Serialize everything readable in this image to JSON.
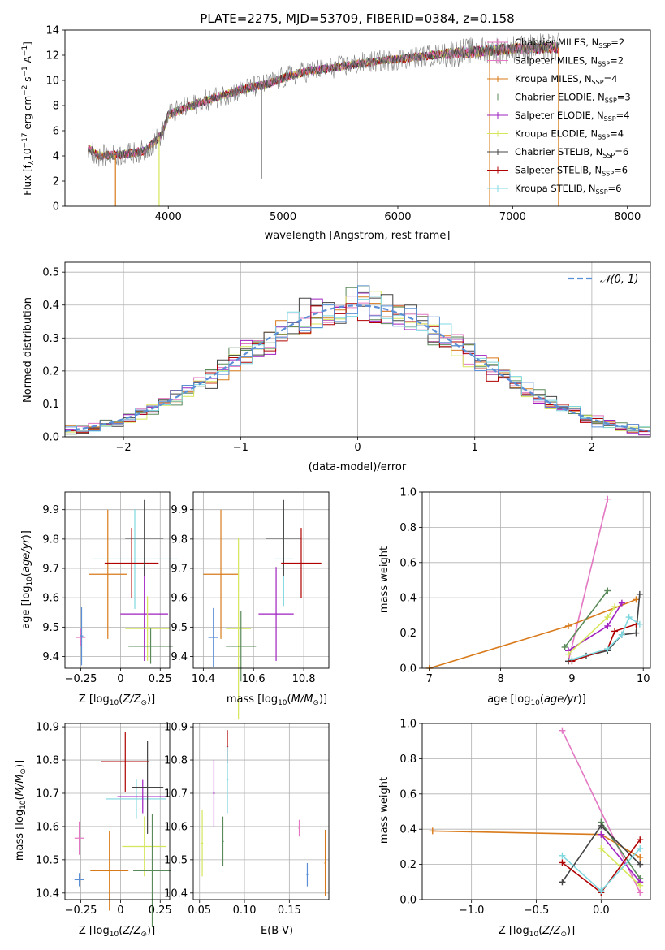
{
  "colors": {
    "chabrier_miles": "#e377c2",
    "salpeter_miles": "#e377c2",
    "kroupa_miles": "#d97a1a",
    "chabrier_elodie": "#5a8a5a",
    "salpeter_elodie": "#a020c0",
    "kroupa_elodie": "#d6e65a",
    "chabrier_stelib": "#444444",
    "salpeter_stelib": "#b00000",
    "kroupa_stelib": "#7fd8e0",
    "data": "#808080",
    "normal": "#5b8fd6",
    "grid": "#b0b0b0"
  },
  "chart_data": [
    {
      "id": "spectrum",
      "type": "line",
      "title": "PLATE=2275, MJD=53709, FIBERID=0384, z=0.158",
      "xlabel": "wavelength [Angstrom, rest frame]",
      "ylabel": "Flux [fλ10⁻¹⁷ erg cm⁻² s⁻¹ A⁻¹]",
      "xlim": [
        3100,
        8200
      ],
      "ylim": [
        0,
        14
      ],
      "xticks": [
        4000,
        5000,
        6000,
        7000,
        8000
      ],
      "yticks": [
        0,
        2,
        4,
        6,
        8,
        10,
        12,
        14
      ],
      "grid": false,
      "legend_position": "top-right",
      "legend": [
        {
          "label": "Chabrier MILES, N",
          "sub": "SSP",
          "tail": "=2",
          "color_key": "chabrier_miles"
        },
        {
          "label": "Salpeter MILES, N",
          "sub": "SSP",
          "tail": "=2",
          "color_key": "salpeter_miles"
        },
        {
          "label": "Kroupa MILES, N",
          "sub": "SSP",
          "tail": "=4",
          "color_key": "kroupa_miles"
        },
        {
          "label": "Chabrier ELODIE, N",
          "sub": "SSP",
          "tail": "=3",
          "color_key": "chabrier_elodie"
        },
        {
          "label": "Salpeter ELODIE, N",
          "sub": "SSP",
          "tail": "=4",
          "color_key": "salpeter_elodie"
        },
        {
          "label": "Kroupa ELODIE, N",
          "sub": "SSP",
          "tail": "=4",
          "color_key": "kroupa_elodie"
        },
        {
          "label": "Chabrier STELIB, N",
          "sub": "SSP",
          "tail": "=6",
          "color_key": "chabrier_stelib"
        },
        {
          "label": "Salpeter STELIB, N",
          "sub": "SSP",
          "tail": "=6",
          "color_key": "salpeter_stelib"
        },
        {
          "label": "Kroupa STELIB, N",
          "sub": "SSP",
          "tail": "=6",
          "color_key": "kroupa_stelib"
        }
      ],
      "continuum": [
        [
          3300,
          4.6
        ],
        [
          3400,
          4.0
        ],
        [
          3600,
          4.1
        ],
        [
          3800,
          4.4
        ],
        [
          3950,
          5.8
        ],
        [
          4000,
          7.3
        ],
        [
          4300,
          8.3
        ],
        [
          4500,
          8.9
        ],
        [
          4700,
          9.4
        ],
        [
          4860,
          9.7
        ],
        [
          5000,
          10.2
        ],
        [
          5200,
          10.7
        ],
        [
          5500,
          11.1
        ],
        [
          5800,
          11.5
        ],
        [
          6100,
          11.8
        ],
        [
          6400,
          12.1
        ],
        [
          6700,
          12.3
        ],
        [
          7000,
          12.5
        ],
        [
          7300,
          12.6
        ]
      ]
    },
    {
      "id": "residuals",
      "type": "histogram",
      "xlabel": "(data-model)/error",
      "ylabel": "Normed distribution",
      "xlim": [
        -2.5,
        2.5
      ],
      "ylim": [
        0,
        0.53
      ],
      "xticks": [
        -2,
        -1,
        0,
        1,
        2
      ],
      "yticks": [
        0.0,
        0.1,
        0.2,
        0.3,
        0.4,
        0.5
      ],
      "grid": true,
      "legend_position": "top-right",
      "legend": [
        {
          "label": "𝒩(0, 1)",
          "color_key": "normal",
          "style": "dashed"
        }
      ],
      "bin_width": 0.1
    },
    {
      "id": "age_vs_Z",
      "type": "scatter",
      "xlabel": "Z [log10(Z/Z⊙)]",
      "ylabel": "age [log10(age/yr)]",
      "xlim": [
        -0.35,
        0.31
      ],
      "ylim": [
        9.36,
        9.96
      ],
      "xticks": [
        -0.25,
        0.0,
        0.25
      ],
      "yticks": [
        9.4,
        9.5,
        9.6,
        9.7,
        9.8,
        9.9
      ],
      "grid": true,
      "points": [
        {
          "x": -0.25,
          "y": 9.465,
          "xerr": 0.03,
          "yerr": 0.03,
          "color_key": "chabrier_miles"
        },
        {
          "x": -0.245,
          "y": 9.47,
          "xerr": 0.01,
          "yerr": 0.1,
          "color_key": "normal"
        },
        {
          "x": -0.08,
          "y": 9.68,
          "xerr": 0.12,
          "yerr": 0.22,
          "color_key": "kroupa_miles"
        },
        {
          "x": 0.15,
          "y": 9.545,
          "xerr": 0.15,
          "yerr": 0.16,
          "color_key": "salpeter_elodie"
        },
        {
          "x": 0.17,
          "y": 9.495,
          "xerr": 0.14,
          "yerr": 0.11,
          "color_key": "kroupa_elodie"
        },
        {
          "x": 0.19,
          "y": 9.435,
          "xerr": 0.14,
          "yerr": 0.06,
          "color_key": "chabrier_elodie"
        },
        {
          "x": 0.09,
          "y": 9.732,
          "xerr": 0.27,
          "yerr": 0.17,
          "color_key": "kroupa_stelib"
        },
        {
          "x": 0.07,
          "y": 9.718,
          "xerr": 0.17,
          "yerr": 0.12,
          "color_key": "salpeter_stelib"
        },
        {
          "x": 0.15,
          "y": 9.803,
          "xerr": 0.12,
          "yerr": 0.13,
          "color_key": "chabrier_stelib"
        }
      ]
    },
    {
      "id": "age_vs_mass",
      "type": "scatter",
      "xlabel": "mass [log10(M/M⊙)]",
      "ylabel": "",
      "xlim": [
        10.36,
        10.9
      ],
      "ylim": [
        9.36,
        9.96
      ],
      "xticks": [
        10.4,
        10.6,
        10.8
      ],
      "yticks": [
        9.4,
        9.5,
        9.6,
        9.7,
        9.8,
        9.9
      ],
      "grid": true,
      "points": [
        {
          "x": 10.44,
          "y": 9.465,
          "xerr": 0.02,
          "yerr": 0.1,
          "color_key": "normal"
        },
        {
          "x": 10.47,
          "y": 9.68,
          "xerr": 0.07,
          "yerr": 0.22,
          "color_key": "kroupa_miles"
        },
        {
          "x": 10.54,
          "y": 9.495,
          "xerr": 0.05,
          "yerr": 0.31,
          "color_key": "kroupa_elodie"
        },
        {
          "x": 10.55,
          "y": 9.435,
          "xerr": 0.06,
          "yerr": 0.12,
          "color_key": "chabrier_elodie"
        },
        {
          "x": 10.69,
          "y": 9.545,
          "xerr": 0.07,
          "yerr": 0.16,
          "color_key": "salpeter_elodie"
        },
        {
          "x": 10.72,
          "y": 9.732,
          "xerr": 0.04,
          "yerr": 0.16,
          "color_key": "kroupa_stelib"
        },
        {
          "x": 10.72,
          "y": 9.803,
          "xerr": 0.07,
          "yerr": 0.13,
          "color_key": "chabrier_stelib"
        },
        {
          "x": 10.79,
          "y": 9.718,
          "xerr": 0.08,
          "yerr": 0.12,
          "color_key": "salpeter_stelib"
        }
      ]
    },
    {
      "id": "weight_vs_age",
      "type": "line",
      "xlabel": "age  [log10(age/yr)]",
      "ylabel": "mass weight",
      "xlim": [
        6.9,
        10.1
      ],
      "ylim": [
        0.0,
        1.0
      ],
      "xticks": [
        7,
        8,
        9,
        10
      ],
      "yticks": [
        0.0,
        0.2,
        0.4,
        0.6,
        0.8,
        1.0
      ],
      "grid": true,
      "series": [
        {
          "color_key": "chabrier_miles",
          "x": [
            8.95,
            9.5
          ],
          "y": [
            0.04,
            0.96
          ]
        },
        {
          "color_key": "kroupa_miles",
          "x": [
            7.0,
            8.95,
            9.9
          ],
          "y": [
            0.0,
            0.24,
            0.39
          ]
        },
        {
          "color_key": "chabrier_elodie",
          "x": [
            8.9,
            9.5
          ],
          "y": [
            0.12,
            0.44
          ]
        },
        {
          "color_key": "salpeter_elodie",
          "x": [
            8.95,
            9.5,
            9.7
          ],
          "y": [
            0.1,
            0.24,
            0.37
          ]
        },
        {
          "color_key": "kroupa_elodie",
          "x": [
            8.95,
            9.5,
            9.6
          ],
          "y": [
            0.08,
            0.29,
            0.35
          ]
        },
        {
          "color_key": "chabrier_stelib",
          "x": [
            8.95,
            9.2,
            9.5,
            9.7,
            9.9,
            9.95
          ],
          "y": [
            0.04,
            0.07,
            0.1,
            0.19,
            0.2,
            0.42
          ]
        },
        {
          "color_key": "salpeter_stelib",
          "x": [
            9.0,
            9.5,
            9.6,
            9.9
          ],
          "y": [
            0.04,
            0.11,
            0.21,
            0.25
          ]
        },
        {
          "color_key": "kroupa_stelib",
          "x": [
            9.0,
            9.5,
            9.7,
            9.8,
            9.95
          ],
          "y": [
            0.05,
            0.11,
            0.19,
            0.29,
            0.25
          ]
        }
      ]
    },
    {
      "id": "mass_vs_Z",
      "type": "scatter",
      "xlabel": "Z [log10(Z/Z⊙)]",
      "ylabel": "mass [log10(M/M⊙)]",
      "xlim": [
        -0.35,
        0.31
      ],
      "ylim": [
        10.38,
        10.91
      ],
      "xticks": [
        -0.25,
        0.0,
        0.25
      ],
      "yticks": [
        10.4,
        10.5,
        10.6,
        10.7,
        10.8,
        10.9
      ],
      "grid": true,
      "points": [
        {
          "x": -0.26,
          "y": 10.565,
          "xerr": 0.03,
          "yerr": 0.05,
          "color_key": "chabrier_miles"
        },
        {
          "x": -0.26,
          "y": 10.44,
          "xerr": 0.03,
          "yerr": 0.02,
          "color_key": "normal"
        },
        {
          "x": -0.07,
          "y": 10.467,
          "xerr": 0.12,
          "yerr": 0.12,
          "color_key": "kroupa_miles"
        },
        {
          "x": 0.15,
          "y": 10.54,
          "xerr": 0.14,
          "yerr": 0.09,
          "color_key": "kroupa_elodie"
        },
        {
          "x": 0.2,
          "y": 10.467,
          "xerr": 0.12,
          "yerr": 0.17,
          "color_key": "chabrier_elodie"
        },
        {
          "x": 0.1,
          "y": 10.683,
          "xerr": 0.19,
          "yerr": 0.06,
          "color_key": "kroupa_stelib"
        },
        {
          "x": 0.14,
          "y": 10.69,
          "xerr": 0.16,
          "yerr": 0.05,
          "color_key": "salpeter_elodie"
        },
        {
          "x": 0.17,
          "y": 10.718,
          "xerr": 0.1,
          "yerr": 0.14,
          "color_key": "chabrier_stelib"
        },
        {
          "x": 0.03,
          "y": 10.795,
          "xerr": 0.15,
          "yerr": 0.09,
          "color_key": "salpeter_stelib"
        }
      ]
    },
    {
      "id": "mass_vs_ebv",
      "type": "scatter",
      "xlabel": "E(B-V)",
      "ylabel": "",
      "xlim": [
        0.043,
        0.194
      ],
      "ylim": [
        10.38,
        10.91
      ],
      "xticks": [
        0.05,
        0.1,
        0.15
      ],
      "tick_labels": [
        "0.05",
        "0.10",
        "0.15"
      ],
      "yticks": [
        10.4,
        10.5,
        10.6,
        10.7,
        10.8,
        10.9
      ],
      "grid": true,
      "points": [
        {
          "x": 0.053,
          "y": 10.55,
          "xerr": 0.001,
          "yerr": 0.1,
          "color_key": "kroupa_elodie"
        },
        {
          "x": 0.066,
          "y": 10.7,
          "xerr": 0.001,
          "yerr": 0.1,
          "color_key": "salpeter_elodie"
        },
        {
          "x": 0.076,
          "y": 10.555,
          "xerr": 0.001,
          "yerr": 0.075,
          "color_key": "chabrier_elodie"
        },
        {
          "x": 0.081,
          "y": 10.84,
          "xerr": 0.001,
          "yerr": 0.05,
          "color_key": "salpeter_stelib"
        },
        {
          "x": 0.081,
          "y": 10.74,
          "xerr": 0.001,
          "yerr": 0.1,
          "color_key": "kroupa_stelib"
        },
        {
          "x": 0.161,
          "y": 10.595,
          "xerr": 0.001,
          "yerr": 0.025,
          "color_key": "chabrier_miles"
        },
        {
          "x": 0.17,
          "y": 10.455,
          "xerr": 0.001,
          "yerr": 0.035,
          "color_key": "normal"
        },
        {
          "x": 0.19,
          "y": 10.49,
          "xerr": 0.001,
          "yerr": 0.1,
          "color_key": "kroupa_miles"
        }
      ]
    },
    {
      "id": "weight_vs_Z",
      "type": "line",
      "xlabel": "Z [log10(Z/Z⊙)]",
      "ylabel": "mass weight",
      "xlim": [
        -1.38,
        0.38
      ],
      "ylim": [
        0.0,
        1.0
      ],
      "xticks": [
        -1.0,
        -0.5,
        0.0
      ],
      "tick_labels": [
        "−1.0",
        "−0.5",
        "0.0"
      ],
      "yticks": [
        0.0,
        0.2,
        0.4,
        0.6,
        0.8,
        1.0
      ],
      "grid": true,
      "series": [
        {
          "color_key": "chabrier_miles",
          "x": [
            -0.3,
            0.3
          ],
          "y": [
            0.96,
            0.04
          ]
        },
        {
          "color_key": "kroupa_miles",
          "x": [
            -1.3,
            0.0,
            0.3
          ],
          "y": [
            0.39,
            0.37,
            0.24
          ]
        },
        {
          "color_key": "chabrier_elodie",
          "x": [
            0.0,
            0.3
          ],
          "y": [
            0.44,
            0.12
          ]
        },
        {
          "color_key": "salpeter_elodie",
          "x": [
            0.0,
            0.3
          ],
          "y": [
            0.37,
            0.1
          ]
        },
        {
          "color_key": "kroupa_elodie",
          "x": [
            0.0,
            0.3
          ],
          "y": [
            0.29,
            0.08
          ]
        },
        {
          "color_key": "chabrier_stelib",
          "x": [
            -0.3,
            0.0,
            0.3
          ],
          "y": [
            0.1,
            0.42,
            0.2
          ]
        },
        {
          "color_key": "salpeter_stelib",
          "x": [
            -0.3,
            0.0,
            0.3
          ],
          "y": [
            0.21,
            0.04,
            0.34
          ]
        },
        {
          "color_key": "kroupa_stelib",
          "x": [
            -0.3,
            0.0,
            0.3
          ],
          "y": [
            0.25,
            0.05,
            0.29
          ]
        }
      ]
    }
  ]
}
